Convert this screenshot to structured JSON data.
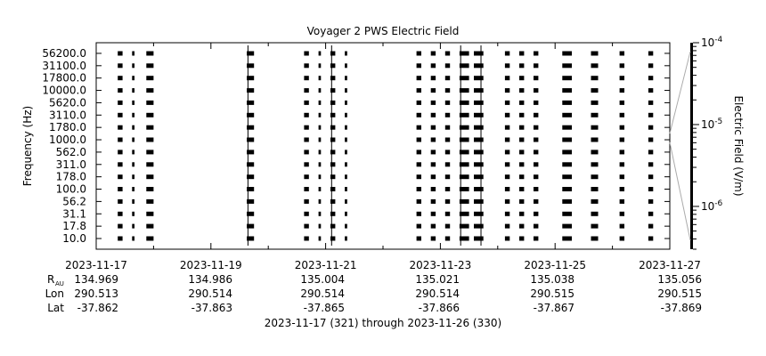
{
  "chart_data": {
    "type": "heatmap",
    "title": "Voyager 2 PWS Electric Field",
    "ylabel": "Frequency (Hz)",
    "colorbar_label": "Electric Field (V/m)",
    "colorbar_scale": "log",
    "colorbar_ticks": [
      {
        "base": "10",
        "exp": "-4",
        "value": 0.0001
      },
      {
        "base": "10",
        "exp": "-5",
        "value": 1e-05
      },
      {
        "base": "10",
        "exp": "-6",
        "value": 1e-06
      }
    ],
    "colorbar_range": [
      3e-07,
      0.0001
    ],
    "x_range": [
      "2023-11-17",
      "2023-11-27"
    ],
    "x_ticks": [
      "2023-11-17",
      "2023-11-19",
      "2023-11-21",
      "2023-11-23",
      "2023-11-25",
      "2023-11-27"
    ],
    "y_scale": "log",
    "y_channels": [
      "10.0",
      "17.8",
      "31.1",
      "56.2",
      "100.0",
      "178.0",
      "311.0",
      "562.0",
      "1000.0",
      "1780.0",
      "3110.0",
      "5620.0",
      "10000.0",
      "17800.0",
      "31100.0",
      "56200.0"
    ],
    "observation_spans": [
      {
        "start": "2023-11-17 09:00",
        "end": "2023-11-17 11:00"
      },
      {
        "start": "2023-11-17 15:00",
        "end": "2023-11-17 16:00"
      },
      {
        "start": "2023-11-17 21:00",
        "end": "2023-11-18 00:00"
      },
      {
        "start": "2023-11-19 15:00",
        "end": "2023-11-19 18:00"
      },
      {
        "start": "2023-11-20 15:00",
        "end": "2023-11-20 17:00"
      },
      {
        "start": "2023-11-20 21:00",
        "end": "2023-11-20 22:00"
      },
      {
        "start": "2023-11-21 02:00",
        "end": "2023-11-21 04:00"
      },
      {
        "start": "2023-11-21 08:00",
        "end": "2023-11-21 09:00"
      },
      {
        "start": "2023-11-22 14:00",
        "end": "2023-11-22 16:00"
      },
      {
        "start": "2023-11-22 20:00",
        "end": "2023-11-22 22:00"
      },
      {
        "start": "2023-11-23 02:00",
        "end": "2023-11-23 04:00"
      },
      {
        "start": "2023-11-23 08:00",
        "end": "2023-11-23 12:00"
      },
      {
        "start": "2023-11-23 14:00",
        "end": "2023-11-23 18:00"
      },
      {
        "start": "2023-11-24 03:00",
        "end": "2023-11-24 05:00"
      },
      {
        "start": "2023-11-24 09:00",
        "end": "2023-11-24 11:00"
      },
      {
        "start": "2023-11-24 15:00",
        "end": "2023-11-24 17:00"
      },
      {
        "start": "2023-11-25 03:00",
        "end": "2023-11-25 07:00"
      },
      {
        "start": "2023-11-25 15:00",
        "end": "2023-11-25 18:00"
      },
      {
        "start": "2023-11-26 03:00",
        "end": "2023-11-26 05:00"
      },
      {
        "start": "2023-11-26 15:00",
        "end": "2023-11-26 17:00"
      }
    ],
    "ephemeris": {
      "labels": {
        "r": "R",
        "r_sub": "AU",
        "lon": "Lon",
        "lat": "Lat"
      },
      "columns": [
        {
          "date": "2023-11-17",
          "r": "134.969",
          "lon": "290.513",
          "lat": "-37.862"
        },
        {
          "date": "2023-11-19",
          "r": "134.986",
          "lon": "290.514",
          "lat": "-37.863"
        },
        {
          "date": "2023-11-21",
          "r": "135.004",
          "lon": "290.514",
          "lat": "-37.865"
        },
        {
          "date": "2023-11-23",
          "r": "135.021",
          "lon": "290.514",
          "lat": "-37.866"
        },
        {
          "date": "2023-11-25",
          "r": "135.038",
          "lon": "290.515",
          "lat": "-37.867"
        },
        {
          "date": "2023-11-27",
          "r": "135.056",
          "lon": "290.515",
          "lat": "-37.869"
        }
      ]
    },
    "footer": "2023-11-17 (321) through 2023-11-26 (330)"
  }
}
